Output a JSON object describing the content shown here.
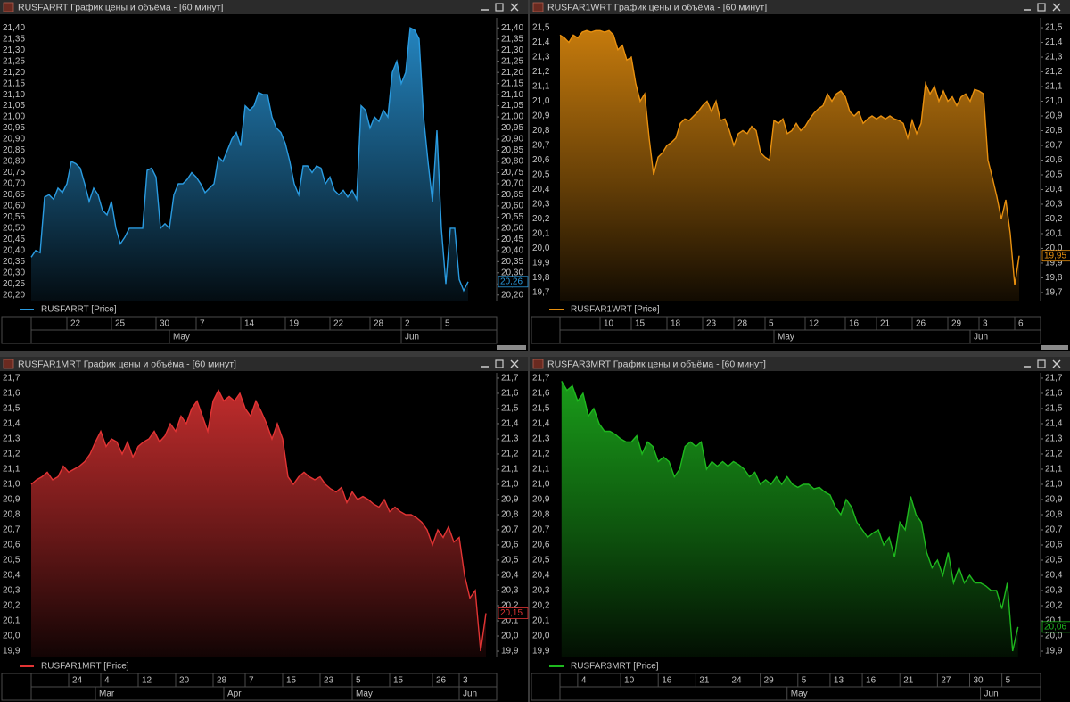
{
  "chart_data": [
    {
      "type": "area",
      "title": "RUSFARRT График цены и объёма - [60 минут]",
      "series": [
        {
          "name": "RUSFARRT [Price]",
          "color": "#2a9be0",
          "values": [
            20.37,
            20.4,
            20.39,
            20.64,
            20.65,
            20.63,
            20.68,
            20.66,
            20.7,
            20.8,
            20.79,
            20.77,
            20.7,
            20.62,
            20.68,
            20.65,
            20.58,
            20.56,
            20.62,
            20.5,
            20.43,
            20.46,
            20.5,
            20.5,
            20.5,
            20.5,
            20.76,
            20.77,
            20.73,
            20.5,
            20.52,
            20.5,
            20.65,
            20.7,
            20.7,
            20.72,
            20.75,
            20.73,
            20.7,
            20.66,
            20.68,
            20.7,
            20.82,
            20.8,
            20.85,
            20.9,
            20.93,
            20.87,
            21.05,
            21.03,
            21.05,
            21.11,
            21.1,
            21.1,
            21.0,
            20.95,
            20.93,
            20.88,
            20.8,
            20.7,
            20.65,
            20.78,
            20.78,
            20.75,
            20.78,
            20.77,
            20.7,
            20.73,
            20.67,
            20.65,
            20.67,
            20.64,
            20.67,
            20.63,
            21.05,
            21.03,
            20.95,
            21.0,
            20.98,
            21.03,
            21.0,
            21.2,
            21.25,
            21.15,
            21.2,
            21.4,
            21.39,
            21.35,
            21.0,
            20.8,
            20.62,
            20.94,
            20.5,
            20.25,
            20.5,
            20.5,
            20.27,
            20.22,
            20.26
          ]
        }
      ],
      "last_label": {
        "value": 20.26,
        "label": "20,26"
      },
      "xlim": [
        0,
        104.4
      ],
      "ylim": [
        20.175,
        21.445
      ],
      "grid": false,
      "xticks": [
        {
          "value": 8,
          "label": "22"
        },
        {
          "value": 18,
          "label": "25"
        },
        {
          "value": 28,
          "label": "30"
        },
        {
          "value": 37,
          "label": "7"
        },
        {
          "value": 47,
          "label": "14"
        },
        {
          "value": 57,
          "label": "19"
        },
        {
          "value": 67,
          "label": "22"
        },
        {
          "value": 76,
          "label": "28"
        },
        {
          "value": 83,
          "label": "2"
        },
        {
          "value": 92,
          "label": "5"
        }
      ],
      "month_ticks": [
        {
          "value": 31,
          "label": "May"
        },
        {
          "value": 83,
          "label": "Jun"
        }
      ],
      "yticks": [
        {
          "value": 20.2,
          "label": "20,20"
        },
        {
          "value": 20.25,
          "label": "20,25"
        },
        {
          "value": 20.3,
          "label": "20,30"
        },
        {
          "value": 20.35,
          "label": "20,35"
        },
        {
          "value": 20.4,
          "label": "20,40"
        },
        {
          "value": 20.45,
          "label": "20,45"
        },
        {
          "value": 20.5,
          "label": "20,50"
        },
        {
          "value": 20.55,
          "label": "20,55"
        },
        {
          "value": 20.6,
          "label": "20,60"
        },
        {
          "value": 20.65,
          "label": "20,65"
        },
        {
          "value": 20.7,
          "label": "20,70"
        },
        {
          "value": 20.75,
          "label": "20,75"
        },
        {
          "value": 20.8,
          "label": "20,80"
        },
        {
          "value": 20.85,
          "label": "20,85"
        },
        {
          "value": 20.9,
          "label": "20,90"
        },
        {
          "value": 20.95,
          "label": "20,95"
        },
        {
          "value": 21.0,
          "label": "21,00"
        },
        {
          "value": 21.05,
          "label": "21,05"
        },
        {
          "value": 21.1,
          "label": "21,10"
        },
        {
          "value": 21.15,
          "label": "21,15"
        },
        {
          "value": 21.2,
          "label": "21,20"
        },
        {
          "value": 21.25,
          "label": "21,25"
        },
        {
          "value": 21.3,
          "label": "21,30"
        },
        {
          "value": 21.35,
          "label": "21,35"
        },
        {
          "value": 21.4,
          "label": "21,40"
        }
      ]
    },
    {
      "type": "area",
      "title": "RUSFAR1WRT График цены и объёма - [60 минут]",
      "series": [
        {
          "name": "RUSFAR1WRT [Price]",
          "color": "#e8900f",
          "values": [
            21.45,
            21.43,
            21.4,
            21.45,
            21.43,
            21.47,
            21.48,
            21.47,
            21.48,
            21.48,
            21.47,
            21.48,
            21.45,
            21.35,
            21.38,
            21.28,
            21.3,
            21.12,
            21.0,
            21.05,
            20.75,
            20.5,
            20.62,
            20.65,
            20.7,
            20.72,
            20.75,
            20.85,
            20.88,
            20.87,
            20.9,
            20.93,
            20.97,
            21.0,
            20.93,
            21.0,
            20.87,
            20.88,
            20.8,
            20.7,
            20.78,
            20.8,
            20.78,
            20.83,
            20.8,
            20.65,
            20.62,
            20.6,
            20.87,
            20.85,
            20.88,
            20.78,
            20.8,
            20.85,
            20.8,
            20.83,
            20.88,
            20.92,
            20.95,
            20.97,
            21.05,
            21.0,
            21.05,
            21.07,
            21.03,
            20.93,
            20.9,
            20.93,
            20.85,
            20.88,
            20.9,
            20.88,
            20.9,
            20.88,
            20.9,
            20.88,
            20.87,
            20.85,
            20.75,
            20.87,
            20.78,
            20.85,
            21.12,
            21.05,
            21.1,
            21.0,
            21.07,
            21.0,
            21.03,
            20.97,
            21.03,
            21.05,
            21.0,
            21.08,
            21.07,
            21.05,
            20.6,
            20.48,
            20.35,
            20.2,
            20.33,
            20.1,
            19.75,
            19.95
          ]
        }
      ],
      "last_label": {
        "value": 19.95,
        "label": "19,95"
      },
      "xlim": [
        0,
        107.8
      ],
      "ylim": [
        19.645,
        21.567
      ],
      "grid": false,
      "xticks": [
        {
          "value": 9,
          "label": "10"
        },
        {
          "value": 16,
          "label": "15"
        },
        {
          "value": 24,
          "label": "18"
        },
        {
          "value": 32,
          "label": "23"
        },
        {
          "value": 39,
          "label": "28"
        },
        {
          "value": 46,
          "label": "5"
        },
        {
          "value": 55,
          "label": "12"
        },
        {
          "value": 64,
          "label": "16"
        },
        {
          "value": 71,
          "label": "21"
        },
        {
          "value": 79,
          "label": "26"
        },
        {
          "value": 87,
          "label": "29"
        },
        {
          "value": 94,
          "label": "3"
        },
        {
          "value": 102,
          "label": "6"
        }
      ],
      "month_ticks": [
        {
          "value": 48,
          "label": "May"
        },
        {
          "value": 92,
          "label": "Jun"
        }
      ],
      "yticks": [
        {
          "value": 19.7,
          "label": "19,7"
        },
        {
          "value": 19.8,
          "label": "19,8"
        },
        {
          "value": 19.9,
          "label": "19,9"
        },
        {
          "value": 20.0,
          "label": "20,0"
        },
        {
          "value": 20.1,
          "label": "20,1"
        },
        {
          "value": 20.2,
          "label": "20,2"
        },
        {
          "value": 20.3,
          "label": "20,3"
        },
        {
          "value": 20.4,
          "label": "20,4"
        },
        {
          "value": 20.5,
          "label": "20,5"
        },
        {
          "value": 20.6,
          "label": "20,6"
        },
        {
          "value": 20.7,
          "label": "20,7"
        },
        {
          "value": 20.8,
          "label": "20,8"
        },
        {
          "value": 20.9,
          "label": "20,9"
        },
        {
          "value": 21.0,
          "label": "21,0"
        },
        {
          "value": 21.1,
          "label": "21,1"
        },
        {
          "value": 21.2,
          "label": "21,2"
        },
        {
          "value": 21.3,
          "label": "21,3"
        },
        {
          "value": 21.4,
          "label": "21,4"
        },
        {
          "value": 21.5,
          "label": "21,5"
        }
      ]
    },
    {
      "type": "area",
      "title": "RUSFAR1MRT График цены и объёма - [60 минут]",
      "series": [
        {
          "name": "RUSFAR1MRT [Price]",
          "color": "#e23434",
          "values": [
            21.0,
            21.03,
            21.05,
            21.08,
            21.03,
            21.05,
            21.12,
            21.08,
            21.1,
            21.12,
            21.15,
            21.2,
            21.28,
            21.35,
            21.25,
            21.3,
            21.28,
            21.2,
            21.28,
            21.18,
            21.25,
            21.28,
            21.3,
            21.35,
            21.28,
            21.32,
            21.4,
            21.35,
            21.45,
            21.4,
            21.5,
            21.55,
            21.45,
            21.35,
            21.55,
            21.62,
            21.55,
            21.58,
            21.55,
            21.6,
            21.5,
            21.45,
            21.55,
            21.48,
            21.4,
            21.3,
            21.4,
            21.3,
            21.05,
            21.0,
            21.05,
            21.08,
            21.05,
            21.03,
            21.05,
            21.0,
            20.97,
            20.95,
            20.98,
            20.88,
            20.95,
            20.9,
            20.92,
            20.9,
            20.87,
            20.85,
            20.9,
            20.82,
            20.85,
            20.82,
            20.8,
            20.8,
            20.78,
            20.75,
            20.7,
            20.6,
            20.7,
            20.65,
            20.72,
            20.62,
            20.65,
            20.4,
            20.25,
            20.3,
            19.9,
            20.15
          ]
        }
      ],
      "last_label": {
        "value": 20.15,
        "label": "20,15"
      },
      "xlim": [
        0,
        87
      ],
      "ylim": [
        19.859,
        21.735
      ],
      "grid": false,
      "xticks": [
        {
          "value": 7,
          "label": "24"
        },
        {
          "value": 13,
          "label": "4"
        },
        {
          "value": 20,
          "label": "12"
        },
        {
          "value": 27,
          "label": "20"
        },
        {
          "value": 34,
          "label": "28"
        },
        {
          "value": 40,
          "label": "7"
        },
        {
          "value": 47,
          "label": "15"
        },
        {
          "value": 54,
          "label": "23"
        },
        {
          "value": 60,
          "label": "5"
        },
        {
          "value": 67,
          "label": "15"
        },
        {
          "value": 75,
          "label": "26"
        },
        {
          "value": 80,
          "label": "3"
        }
      ],
      "month_ticks": [
        {
          "value": 12,
          "label": "Mar"
        },
        {
          "value": 36,
          "label": "Apr"
        },
        {
          "value": 60,
          "label": "May"
        },
        {
          "value": 80,
          "label": "Jun"
        }
      ],
      "yticks": [
        {
          "value": 19.9,
          "label": "19,9"
        },
        {
          "value": 20.0,
          "label": "20,0"
        },
        {
          "value": 20.1,
          "label": "20,1"
        },
        {
          "value": 20.2,
          "label": "20,2"
        },
        {
          "value": 20.3,
          "label": "20,3"
        },
        {
          "value": 20.4,
          "label": "20,4"
        },
        {
          "value": 20.5,
          "label": "20,5"
        },
        {
          "value": 20.6,
          "label": "20,6"
        },
        {
          "value": 20.7,
          "label": "20,7"
        },
        {
          "value": 20.8,
          "label": "20,8"
        },
        {
          "value": 20.9,
          "label": "20,9"
        },
        {
          "value": 21.0,
          "label": "21,0"
        },
        {
          "value": 21.1,
          "label": "21,1"
        },
        {
          "value": 21.2,
          "label": "21,2"
        },
        {
          "value": 21.3,
          "label": "21,3"
        },
        {
          "value": 21.4,
          "label": "21,4"
        },
        {
          "value": 21.5,
          "label": "21,5"
        },
        {
          "value": 21.6,
          "label": "21,6"
        },
        {
          "value": 21.7,
          "label": "21,7"
        }
      ]
    },
    {
      "type": "area",
      "title": "RUSFAR3MRT График цены и объёма - [60 минут]",
      "series": [
        {
          "name": "RUSFAR3MRT [Price]",
          "color": "#1eb81e",
          "values": [
            21.68,
            21.62,
            21.65,
            21.55,
            21.6,
            21.45,
            21.5,
            21.4,
            21.35,
            21.35,
            21.33,
            21.3,
            21.28,
            21.28,
            21.32,
            21.2,
            21.28,
            21.25,
            21.15,
            21.18,
            21.15,
            21.05,
            21.1,
            21.25,
            21.28,
            21.25,
            21.28,
            21.1,
            21.15,
            21.12,
            21.15,
            21.12,
            21.15,
            21.13,
            21.1,
            21.05,
            21.08,
            21.0,
            21.03,
            21.0,
            21.05,
            21.0,
            21.05,
            21.0,
            20.98,
            21.0,
            21.0,
            20.97,
            20.98,
            20.95,
            20.93,
            20.85,
            20.8,
            20.9,
            20.85,
            20.75,
            20.7,
            20.65,
            20.68,
            20.7,
            20.6,
            20.65,
            20.52,
            20.75,
            20.7,
            20.92,
            20.8,
            20.75,
            20.55,
            20.45,
            20.5,
            20.4,
            20.55,
            20.35,
            20.45,
            20.35,
            20.4,
            20.35,
            20.35,
            20.33,
            20.3,
            20.3,
            20.18,
            20.35,
            19.9,
            20.06
          ]
        }
      ],
      "last_label": {
        "value": 20.06,
        "label": "20,06"
      },
      "xlim": [
        -0.3,
        89.2
      ],
      "ylim": [
        19.859,
        21.735
      ],
      "grid": false,
      "xticks": [
        {
          "value": 3,
          "label": "4"
        },
        {
          "value": 11,
          "label": "10"
        },
        {
          "value": 18,
          "label": "16"
        },
        {
          "value": 25,
          "label": "21"
        },
        {
          "value": 31,
          "label": "24"
        },
        {
          "value": 37,
          "label": "29"
        },
        {
          "value": 44,
          "label": "5"
        },
        {
          "value": 50,
          "label": "13"
        },
        {
          "value": 56,
          "label": "16"
        },
        {
          "value": 63,
          "label": "21"
        },
        {
          "value": 70,
          "label": "27"
        },
        {
          "value": 76,
          "label": "30"
        },
        {
          "value": 82,
          "label": "5"
        }
      ],
      "month_ticks": [
        {
          "value": 42,
          "label": "May"
        },
        {
          "value": 78,
          "label": "Jun"
        }
      ],
      "yticks": [
        {
          "value": 19.9,
          "label": "19,9"
        },
        {
          "value": 20.0,
          "label": "20,0"
        },
        {
          "value": 20.1,
          "label": "20,1"
        },
        {
          "value": 20.2,
          "label": "20,2"
        },
        {
          "value": 20.3,
          "label": "20,3"
        },
        {
          "value": 20.4,
          "label": "20,4"
        },
        {
          "value": 20.5,
          "label": "20,5"
        },
        {
          "value": 20.6,
          "label": "20,6"
        },
        {
          "value": 20.7,
          "label": "20,7"
        },
        {
          "value": 20.8,
          "label": "20,8"
        },
        {
          "value": 20.9,
          "label": "20,9"
        },
        {
          "value": 21.0,
          "label": "21,0"
        },
        {
          "value": 21.1,
          "label": "21,1"
        },
        {
          "value": 21.2,
          "label": "21,2"
        },
        {
          "value": 21.3,
          "label": "21,3"
        },
        {
          "value": 21.4,
          "label": "21,4"
        },
        {
          "value": 21.5,
          "label": "21,5"
        },
        {
          "value": 21.6,
          "label": "21,6"
        },
        {
          "value": 21.7,
          "label": "21,7"
        }
      ]
    }
  ]
}
